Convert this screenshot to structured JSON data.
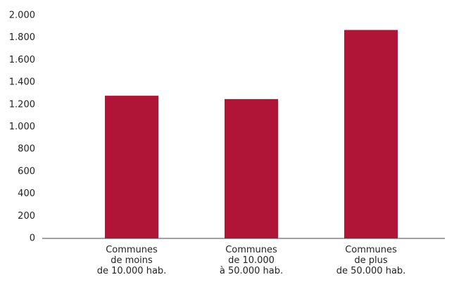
{
  "chart_data": {
    "type": "bar",
    "categories": [
      [
        "Communes",
        "de moins",
        "de 10.000 hab."
      ],
      [
        "Communes",
        "de 10.000",
        "à 50.000 hab."
      ],
      [
        "Communes",
        "de plus",
        "de 50.000 hab."
      ]
    ],
    "values": [
      1280,
      1250,
      1870
    ],
    "color": "#b01538",
    "ylim": [
      0,
      2000
    ],
    "yticks": [
      0,
      200,
      400,
      600,
      800,
      {
        "value": 1000,
        "label": "1.000"
      },
      {
        "value": 1200,
        "label": "1.200"
      },
      {
        "value": 1400,
        "label": "1.400"
      },
      {
        "value": 1600,
        "label": "1.600"
      },
      {
        "value": 1800,
        "label": "1.800"
      },
      {
        "value": 2000,
        "label": "2.000"
      }
    ],
    "grid": false
  }
}
